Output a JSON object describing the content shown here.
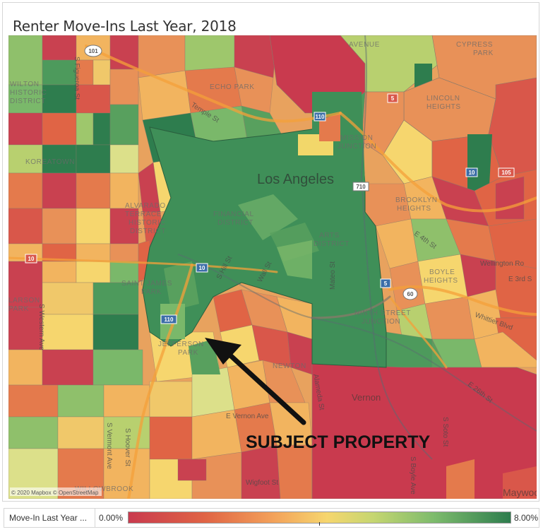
{
  "title": "Renter Move-Ins Last Year, 2018",
  "map": {
    "city_label": "Los Angeles",
    "annotation": "SUBJECT PROPERTY",
    "attribution": "© 2020 Mapbox © OpenStreetMap",
    "neighborhoods": {
      "wilton": [
        "WILTON",
        "HISTORIC",
        "DISTRICT"
      ],
      "echo_park": "ECHO PARK",
      "koreatown": "KOREATOWN",
      "alvarado": [
        "ALVARADO",
        "TERRACE",
        "HISTORIC",
        "DISTRICT"
      ],
      "financial": [
        "FINANCIAL",
        "DISTRICT"
      ],
      "arts": [
        "ARTS",
        "DISTRICT"
      ],
      "mission": [
        "MISSION",
        "JUNCTION"
      ],
      "lincoln": [
        "LINCOLN",
        "HEIGHTS"
      ],
      "brooklyn": [
        "BROOKLYN",
        "HEIGHTS"
      ],
      "boyle": [
        "BOYLE",
        "HEIGHTS"
      ],
      "saint_james": [
        "SAINT JAMES",
        "PARK"
      ],
      "ninth": [
        "NINTH STREET",
        "JUNCTION"
      ],
      "jefferson": [
        "JEFFERSON",
        "PARK"
      ],
      "newton": "NEWTON",
      "vernon": "Vernon",
      "maywood": "Maywood",
      "cypress": [
        "CYPRESS",
        "PARK"
      ],
      "elysian": "AVENUE",
      "watts": "WILLOWBROOK",
      "larchmont": [
        "LARSON",
        "PARK"
      ]
    },
    "streets": {
      "s_hill": "S Hill St",
      "wall": "Wall St",
      "mateo": "Mateo St",
      "e_26th": "E 26th St",
      "whittier": "Whittier Blvd",
      "wellington": "Wellington Ro",
      "e_3rd": "E 3rd S",
      "e_4th": "E 4th St",
      "e_vernon": "E Vernon Ave",
      "wigfoot": "Wigfoot St",
      "s_vermont": "S Vermont Ave",
      "s_hoover": "S Hoover St",
      "s_soto": "S Soto St",
      "s_boyle": "S Boyle Ave",
      "s_western": "S Western Ave",
      "alameda": "Alameda St",
      "s_figueroa": "S Figueroa St",
      "temple": "Temple St"
    },
    "highways": [
      "101",
      "5",
      "10",
      "10",
      "110",
      "110",
      "60",
      "5",
      "105",
      "10",
      "710"
    ]
  },
  "legend": {
    "label": "Move-In Last Year ...",
    "min": "0.00%",
    "max": "8.00%",
    "colors": [
      "#c93a4e",
      "#e06445",
      "#f3a25a",
      "#f6d66e",
      "#c6d671",
      "#7dbb6c",
      "#2e7d4e"
    ]
  }
}
